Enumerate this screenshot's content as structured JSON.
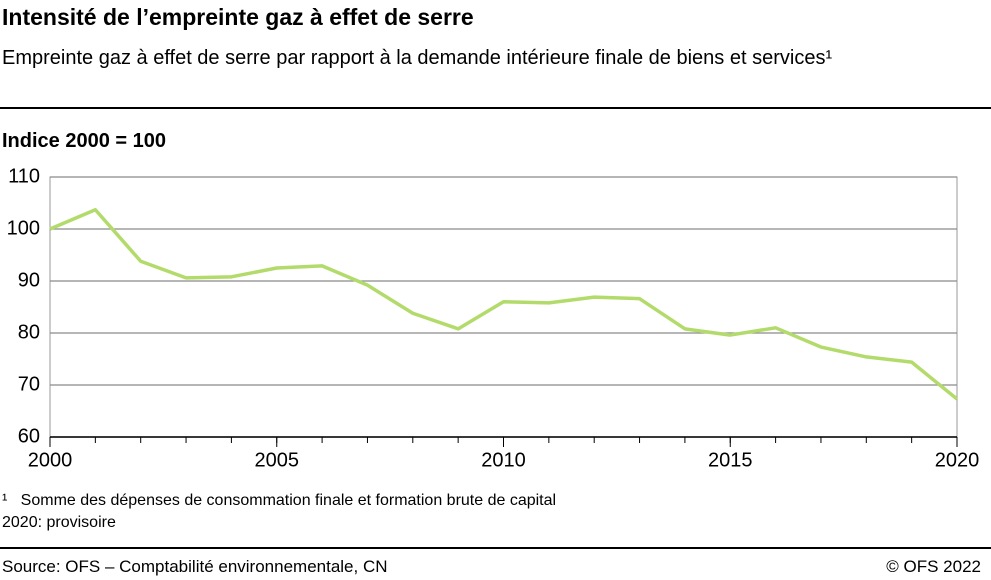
{
  "chart_data": {
    "type": "line",
    "title": "Intensité de l’empreinte gaz à effet de serre",
    "subtitle": "Empreinte gaz à effet de serre par rapport à la demande intérieure finale de biens et services¹",
    "y_axis_label": "Indice 2000 = 100",
    "x": [
      2000,
      2001,
      2002,
      2003,
      2004,
      2005,
      2006,
      2007,
      2008,
      2009,
      2010,
      2011,
      2012,
      2013,
      2014,
      2015,
      2016,
      2017,
      2018,
      2019,
      2020
    ],
    "series": [
      {
        "color": "#b3db6b",
        "values": [
          100,
          103.7,
          93.8,
          90.6,
          90.8,
          92.5,
          92.9,
          89.2,
          83.8,
          80.8,
          86.0,
          85.8,
          86.9,
          86.6,
          80.8,
          79.6,
          81.0,
          77.3,
          75.4,
          74.4,
          67.3
        ]
      }
    ],
    "xlim": [
      2000,
      2020
    ],
    "xticks": [
      2000,
      2005,
      2010,
      2015,
      2020
    ],
    "ylim": [
      60,
      110
    ],
    "yticks": [
      60,
      70,
      80,
      90,
      100,
      110
    ],
    "grid": true,
    "footnotes": [
      "¹   Somme des dépenses de consommation finale et formation brute de capital",
      "2020: provisoire"
    ],
    "source": "Source: OFS – Comptabilité environnementale, CN",
    "copyright": "© OFS 2022"
  }
}
